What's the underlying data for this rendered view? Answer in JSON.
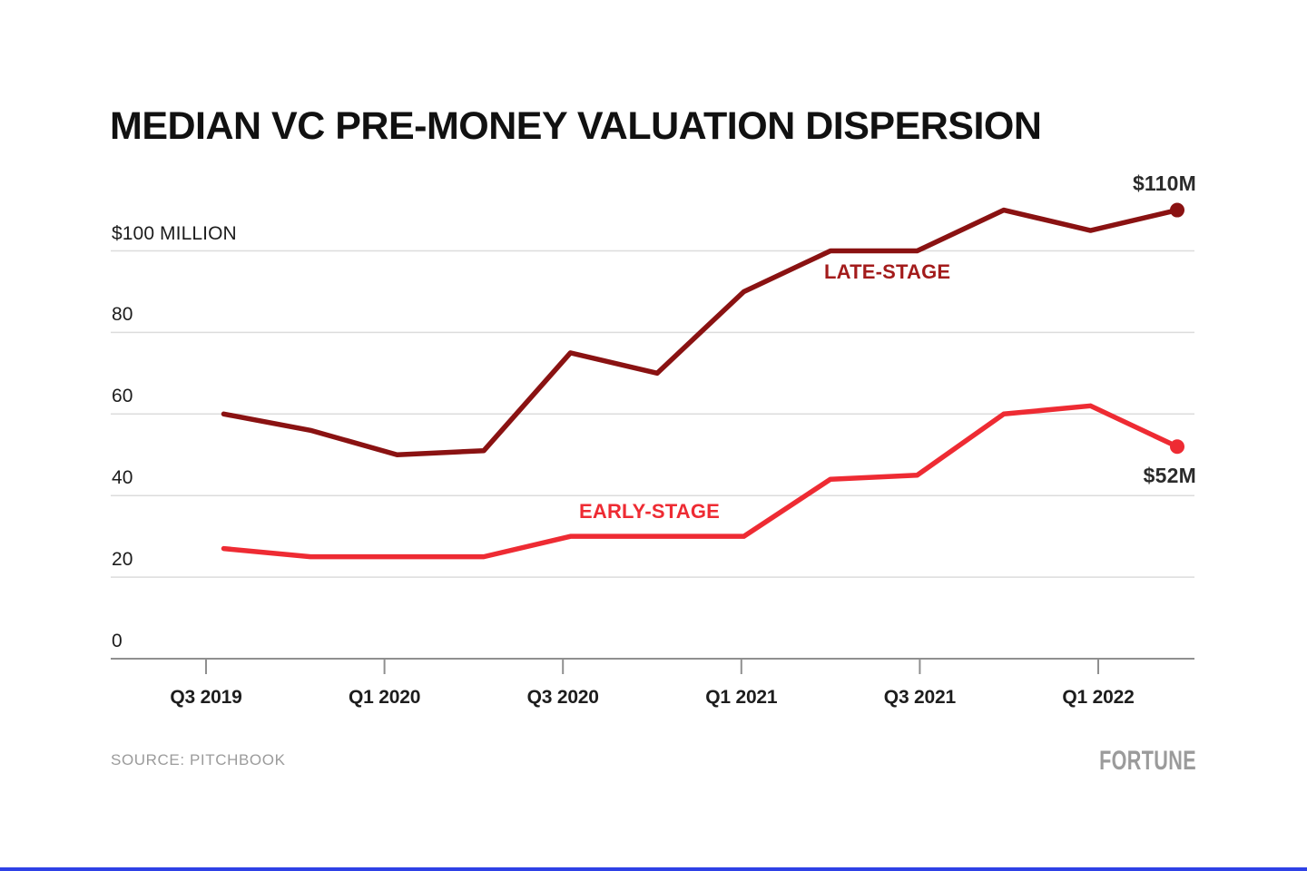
{
  "page": {
    "background": "#ffffff",
    "accent_bar_color": "#2e41e6"
  },
  "footer": {
    "source": "SOURCE: PITCHBOOK",
    "brand": "FORTUNE"
  },
  "chart_data": {
    "type": "line",
    "title": "MEDIAN VC PRE-MONEY VALUATION DISPERSION",
    "x_quarters": [
      "Q3 2019",
      "Q4 2019",
      "Q1 2020",
      "Q2 2020",
      "Q3 2020",
      "Q4 2020",
      "Q1 2021",
      "Q2 2021",
      "Q3 2021",
      "Q4 2021",
      "Q1 2022",
      "Q2 2022"
    ],
    "x_axis": {
      "labels": [
        "Q3 2019",
        "Q1 2020",
        "Q3 2020",
        "Q1 2021",
        "Q3 2021",
        "Q1 2022"
      ]
    },
    "y_axis": {
      "unit": "$ million",
      "range": [
        0,
        118
      ],
      "ticks": [
        {
          "label": "$100 MILLION",
          "value": 100
        },
        {
          "label": "80",
          "value": 80
        },
        {
          "label": "60",
          "value": 60
        },
        {
          "label": "40",
          "value": 40
        },
        {
          "label": "20",
          "value": 20
        },
        {
          "label": "0",
          "value": 0
        }
      ]
    },
    "grid": true,
    "legend_position": "inline-labels",
    "series": [
      {
        "name": "LATE-STAGE",
        "color": "#8a1212",
        "label_color": "#a31b1b",
        "end_label": "$110M",
        "values": [
          60,
          56,
          50,
          51,
          75,
          70,
          90,
          100,
          100,
          110,
          105,
          110
        ]
      },
      {
        "name": "EARLY-STAGE",
        "color": "#ee2b33",
        "label_color": "#ee2b33",
        "end_label": "$52M",
        "values": [
          27,
          25,
          25,
          25,
          30,
          30,
          30,
          44,
          45,
          60,
          62,
          52
        ]
      }
    ],
    "source": "SOURCE: PITCHBOOK"
  }
}
